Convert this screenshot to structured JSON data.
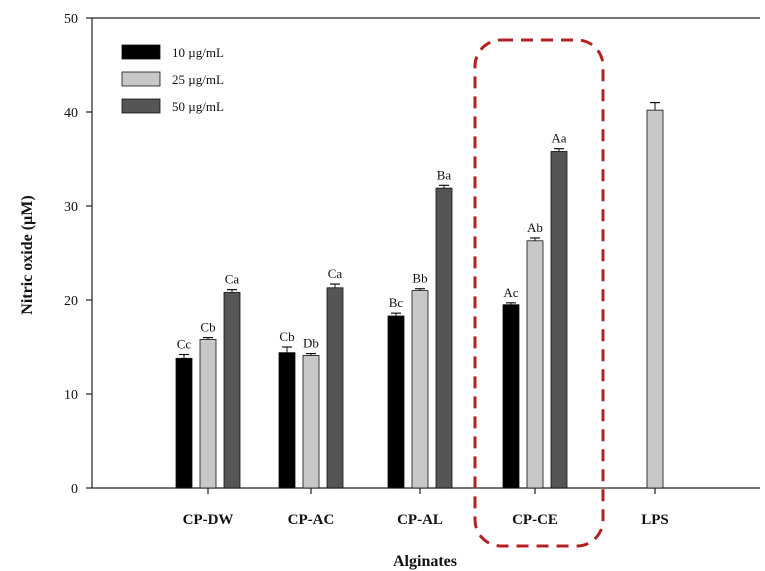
{
  "chart_data": {
    "type": "bar",
    "title": "",
    "xlabel": "Alginates",
    "ylabel": "Nitric oxide (µM)",
    "ylim": [
      0,
      50
    ],
    "yticks": [
      0,
      10,
      20,
      30,
      40,
      50
    ],
    "grid": false,
    "legend_position": "top-left",
    "categories": [
      "CP-DW",
      "CP-AC",
      "CP-AL",
      "CP-CE",
      "LPS"
    ],
    "series": [
      {
        "name": "10 µg/mL",
        "color": "#000000",
        "values": [
          13.8,
          14.4,
          18.3,
          19.5,
          null
        ],
        "errors": [
          0.4,
          0.6,
          0.3,
          0.2,
          null
        ],
        "labels": [
          "Cc",
          "Cb",
          "Bc",
          "Ac",
          ""
        ]
      },
      {
        "name": "25 µg/mL",
        "color": "#c8c8c8",
        "values": [
          15.8,
          14.1,
          21.0,
          26.3,
          40.2
        ],
        "errors": [
          0.2,
          0.2,
          0.2,
          0.3,
          0.8
        ],
        "labels": [
          "Cb",
          "Db",
          "Bb",
          "Ab",
          ""
        ]
      },
      {
        "name": "50 µg/mL",
        "color": "#555555",
        "values": [
          20.8,
          21.3,
          31.9,
          35.8,
          null
        ],
        "errors": [
          0.3,
          0.4,
          0.3,
          0.3,
          null
        ],
        "labels": [
          "Ca",
          "Ca",
          "Ba",
          "Aa",
          ""
        ]
      }
    ],
    "highlight": {
      "category": "CP-CE",
      "style": "dashed-rounded-box",
      "color": "#b22222"
    }
  }
}
